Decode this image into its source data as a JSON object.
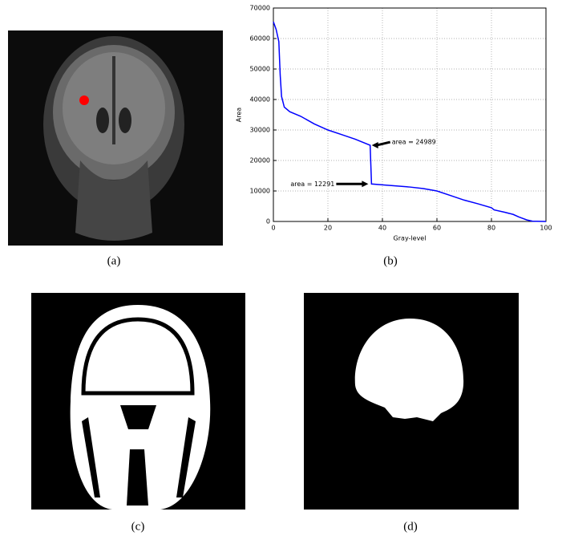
{
  "chart_data": {
    "type": "line",
    "xlabel": "Gray-level",
    "ylabel": "Area",
    "x": [
      0,
      1,
      2,
      2.5,
      3,
      4,
      6,
      10,
      15,
      20,
      25,
      30,
      35.5,
      36,
      40,
      50,
      55,
      60,
      65,
      70,
      75,
      80,
      81,
      85,
      88,
      90,
      93,
      95,
      100
    ],
    "values": [
      65500,
      63000,
      59000,
      48000,
      41000,
      37500,
      36000,
      34500,
      32000,
      30000,
      28500,
      27000,
      24989,
      12291,
      12000,
      11300,
      10800,
      10000,
      8500,
      7000,
      5800,
      4500,
      3800,
      3000,
      2300,
      1500,
      500,
      100,
      0
    ],
    "color": "#0000ff",
    "xlim": [
      0,
      100
    ],
    "ylim": [
      0,
      70000
    ],
    "xticks": [
      0,
      20,
      40,
      60,
      80,
      100
    ],
    "yticks": [
      0,
      10000,
      20000,
      30000,
      40000,
      50000,
      60000,
      70000
    ],
    "grid": true,
    "annotations": [
      {
        "text": "area = 24989",
        "x": 35.5,
        "y": 24989
      },
      {
        "text": "area = 12291",
        "x": 36,
        "y": 12291
      }
    ]
  },
  "captions": [
    "(a)",
    "(b)",
    "(c)",
    "(d)"
  ]
}
